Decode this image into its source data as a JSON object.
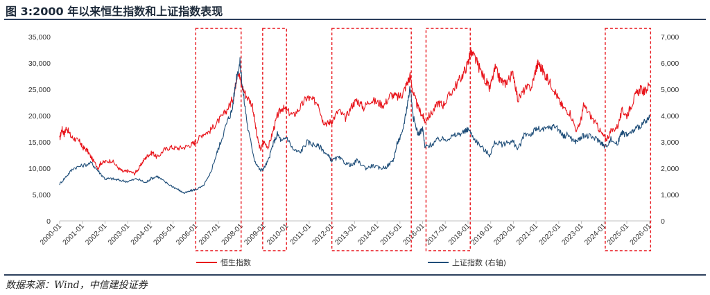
{
  "header": {
    "title": "图 3:2000 年以来恒生指数和上证指数表现"
  },
  "footer": {
    "source": "数据来源：Wind，中信建投证券"
  },
  "chart_data": {
    "type": "line",
    "left_axis": {
      "ylim": [
        0,
        35000
      ],
      "ticks": [
        "0",
        "5,000",
        "10,000",
        "15,000",
        "20,000",
        "25,000",
        "30,000",
        "35,000"
      ]
    },
    "right_axis": {
      "ylim": [
        0,
        7000
      ],
      "ticks": [
        "0",
        "1,000",
        "2,000",
        "3,000",
        "4,000",
        "5,000",
        "6,000",
        "7,000"
      ]
    },
    "xlim": [
      2000,
      2026.1
    ],
    "x_tick_labels": [
      "2000-01",
      "2001-01",
      "2002-01",
      "2003-01",
      "2004-01",
      "2005-01",
      "2006-01",
      "2007-01",
      "2008-01",
      "2009-01",
      "2010-01",
      "2011-01",
      "2012-01",
      "2013-01",
      "2014-01",
      "2015-01",
      "2016-01",
      "2017-01",
      "2018-01",
      "2019-01",
      "2020-01",
      "2021-01",
      "2022-01",
      "2023-01",
      "2024-01",
      "2025-01",
      "2026-01"
    ],
    "legend_position": "bottom",
    "series": [
      {
        "name": "恒生指数",
        "axis": "left",
        "color": "#e8141b",
        "x": [
          2000.0,
          2000.1,
          2000.2,
          2000.3,
          2000.5,
          2000.7,
          2000.9,
          2001.0,
          2001.2,
          2001.4,
          2001.7,
          2001.8,
          2002.0,
          2002.3,
          2002.6,
          2002.8,
          2003.0,
          2003.3,
          2003.5,
          2003.7,
          2003.9,
          2004.1,
          2004.3,
          2004.6,
          2004.9,
          2005.2,
          2005.5,
          2005.8,
          2006.0,
          2006.3,
          2006.6,
          2006.9,
          2007.2,
          2007.5,
          2007.7,
          2007.85,
          2008.0,
          2008.2,
          2008.5,
          2008.7,
          2008.85,
          2009.0,
          2009.2,
          2009.4,
          2009.6,
          2009.8,
          2010.0,
          2010.3,
          2010.6,
          2010.9,
          2011.1,
          2011.4,
          2011.6,
          2011.8,
          2012.0,
          2012.3,
          2012.6,
          2012.9,
          2013.1,
          2013.4,
          2013.7,
          2014.0,
          2014.3,
          2014.6,
          2014.9,
          2015.1,
          2015.3,
          2015.45,
          2015.6,
          2015.8,
          2016.0,
          2016.1,
          2016.4,
          2016.7,
          2016.9,
          2017.2,
          2017.5,
          2017.8,
          2018.0,
          2018.1,
          2018.3,
          2018.5,
          2018.8,
          2018.95,
          2019.2,
          2019.4,
          2019.6,
          2019.8,
          2020.0,
          2020.2,
          2020.5,
          2020.8,
          2021.0,
          2021.1,
          2021.3,
          2021.5,
          2021.8,
          2022.0,
          2022.2,
          2022.5,
          2022.8,
          2023.0,
          2023.1,
          2023.4,
          2023.7,
          2023.9,
          2024.1,
          2024.3,
          2024.6,
          2024.8,
          2025.0,
          2025.2,
          2025.4,
          2025.6,
          2025.8,
          2026.0
        ],
        "values": [
          15500,
          17500,
          16500,
          17800,
          16000,
          15500,
          15000,
          14000,
          13500,
          12000,
          10000,
          11000,
          11200,
          11500,
          10000,
          9300,
          9500,
          9000,
          10000,
          11500,
          12500,
          13000,
          12000,
          13500,
          14000,
          13800,
          14000,
          14500,
          15000,
          16500,
          17000,
          18500,
          20000,
          22000,
          24000,
          29000,
          26000,
          24000,
          22000,
          16000,
          13500,
          15000,
          14000,
          17000,
          20000,
          21500,
          21000,
          20000,
          21500,
          23500,
          23000,
          22500,
          19000,
          18500,
          19000,
          21000,
          19500,
          22000,
          23000,
          21500,
          23000,
          22500,
          22000,
          24000,
          23500,
          24000,
          26000,
          27500,
          24000,
          21500,
          20000,
          19000,
          20500,
          22500,
          22000,
          24000,
          26000,
          28000,
          30000,
          32000,
          31000,
          29000,
          26500,
          25000,
          29000,
          27000,
          26000,
          27000,
          28000,
          23000,
          25000,
          25500,
          29000,
          30000,
          28500,
          27000,
          25000,
          23000,
          21500,
          20500,
          17000,
          19500,
          22000,
          20000,
          18000,
          16500,
          15500,
          17000,
          18000,
          21000,
          20000,
          22000,
          24000,
          25000,
          24500,
          26000
        ]
      },
      {
        "name": "上证指数 (右轴)",
        "axis": "right",
        "color": "#1f4e79",
        "x": [
          2000.0,
          2000.3,
          2000.6,
          2001.0,
          2001.4,
          2001.7,
          2002.0,
          2002.3,
          2002.6,
          2003.0,
          2003.4,
          2003.8,
          2004.0,
          2004.3,
          2004.6,
          2005.0,
          2005.3,
          2005.5,
          2005.8,
          2006.0,
          2006.3,
          2006.6,
          2006.9,
          2007.1,
          2007.4,
          2007.6,
          2007.8,
          2007.95,
          2008.1,
          2008.3,
          2008.6,
          2008.85,
          2009.0,
          2009.2,
          2009.4,
          2009.6,
          2009.8,
          2010.0,
          2010.3,
          2010.6,
          2010.9,
          2011.2,
          2011.5,
          2011.8,
          2012.0,
          2012.3,
          2012.6,
          2012.9,
          2013.1,
          2013.5,
          2013.8,
          2014.1,
          2014.4,
          2014.7,
          2014.9,
          2015.1,
          2015.3,
          2015.45,
          2015.6,
          2015.8,
          2016.0,
          2016.1,
          2016.4,
          2016.7,
          2017.0,
          2017.3,
          2017.6,
          2017.9,
          2018.0,
          2018.3,
          2018.6,
          2018.95,
          2019.2,
          2019.5,
          2019.8,
          2020.0,
          2020.2,
          2020.5,
          2020.8,
          2021.0,
          2021.3,
          2021.6,
          2021.9,
          2022.2,
          2022.4,
          2022.7,
          2022.9,
          2023.1,
          2023.4,
          2023.7,
          2023.9,
          2024.05,
          2024.3,
          2024.6,
          2024.75,
          2024.85,
          2025.1,
          2025.4,
          2025.7,
          2025.9,
          2026.0
        ],
        "values": [
          1400,
          1700,
          2000,
          2100,
          2200,
          1900,
          1600,
          1600,
          1550,
          1500,
          1600,
          1450,
          1600,
          1700,
          1500,
          1300,
          1150,
          1050,
          1150,
          1200,
          1300,
          1700,
          2500,
          3000,
          3800,
          4200,
          5500,
          6000,
          4800,
          3500,
          2300,
          1900,
          2000,
          2300,
          2900,
          3300,
          3000,
          3200,
          2700,
          2600,
          3000,
          2900,
          2800,
          2500,
          2300,
          2400,
          2200,
          2100,
          2300,
          2000,
          2100,
          2000,
          2050,
          2300,
          3000,
          3300,
          4300,
          5100,
          3900,
          3300,
          3500,
          2800,
          2900,
          3100,
          3100,
          3200,
          3300,
          3400,
          3500,
          3100,
          2800,
          2500,
          3000,
          2900,
          3000,
          3000,
          2700,
          3300,
          3300,
          3500,
          3450,
          3550,
          3600,
          3200,
          3300,
          3000,
          3100,
          3250,
          3200,
          3100,
          2950,
          2800,
          3100,
          2900,
          3400,
          3300,
          3300,
          3500,
          3700,
          3800,
          3900
        ]
      }
    ],
    "highlight_periods": [
      [
        2006.0,
        2008.0
      ],
      [
        2008.95,
        2010.0
      ],
      [
        2012.0,
        2015.5
      ],
      [
        2016.15,
        2018.1
      ],
      [
        2024.05,
        2026.05
      ]
    ]
  }
}
